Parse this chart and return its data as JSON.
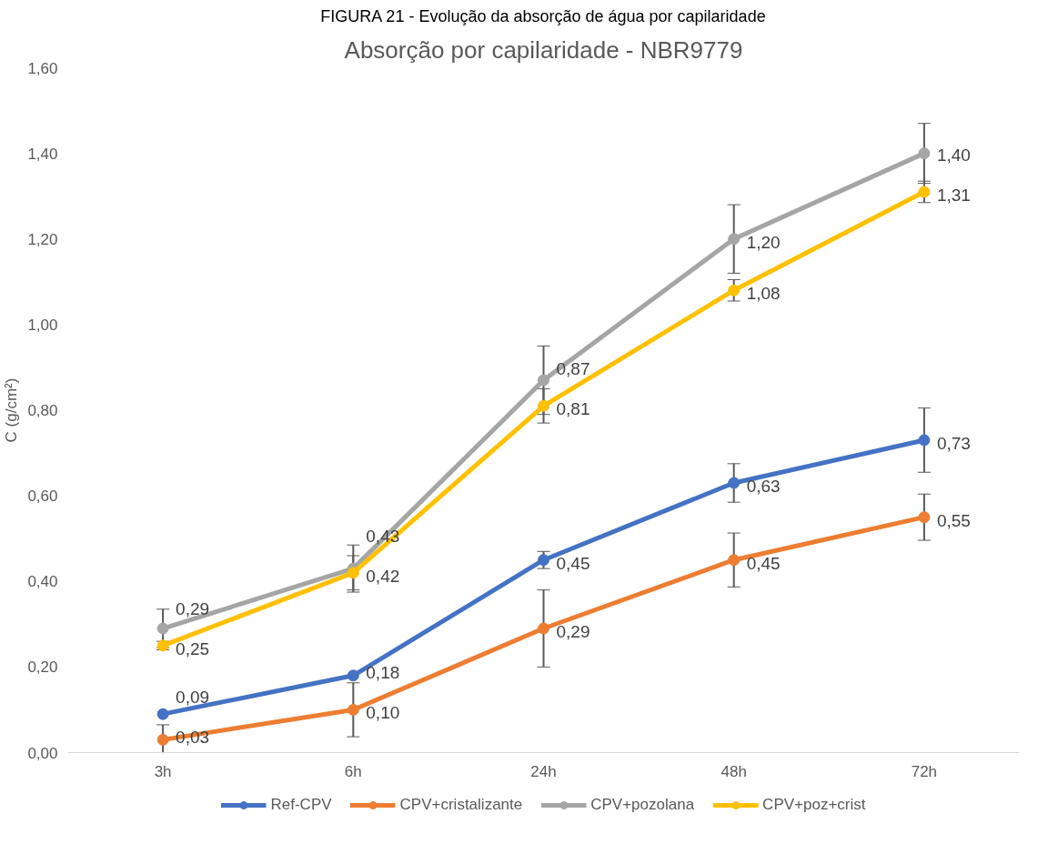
{
  "chart_data": {
    "type": "line",
    "title": "FIGURA 21 - Evolução da absorção de água por capilaridade",
    "subtitle": "Absorção por capilaridade - NBR9779",
    "ylabel": "C (g/cm²)",
    "categories": [
      "3h",
      "6h",
      "24h",
      "48h",
      "72h"
    ],
    "ylim": [
      0,
      1.6
    ],
    "yticks": [
      {
        "value": 0,
        "label": "0,00"
      },
      {
        "value": 0.2,
        "label": "0,20"
      },
      {
        "value": 0.4,
        "label": "0,40"
      },
      {
        "value": 0.6,
        "label": "0,60"
      },
      {
        "value": 0.8,
        "label": "0,80"
      },
      {
        "value": 1.0,
        "label": "1,00"
      },
      {
        "value": 1.2,
        "label": "1,20"
      },
      {
        "value": 1.4,
        "label": "1,40"
      },
      {
        "value": 1.6,
        "label": "1,60"
      }
    ],
    "grid": false,
    "legend": "bottom",
    "marker": "circle",
    "line_style": "solid",
    "series": [
      {
        "name": "Ref-CPV",
        "color": "#4472c4",
        "values": [
          0.09,
          0.18,
          0.45,
          0.63,
          0.73
        ],
        "errors": [
          null,
          null,
          0.02,
          0.045,
          0.075
        ],
        "value_labels": [
          "0,09",
          "0,18",
          "0,45",
          "0,63",
          "0,73"
        ]
      },
      {
        "name": "CPV+cristalizante",
        "color": "#ed7d31",
        "values": [
          0.03,
          0.1,
          0.29,
          0.45,
          0.55
        ],
        "errors": [
          0.035,
          0.063,
          0.09,
          0.063,
          0.054
        ],
        "value_labels": [
          "0,03",
          "0,10",
          "0,29",
          "0,45",
          "0,55"
        ]
      },
      {
        "name": "CPV+pozolana",
        "color": "#a5a5a5",
        "values": [
          0.29,
          0.43,
          0.87,
          1.2,
          1.4
        ],
        "errors": [
          0.045,
          0.055,
          0.08,
          0.08,
          0.07
        ],
        "value_labels": [
          "0,29",
          "0,43",
          "0,87",
          "1,20",
          "1,40"
        ]
      },
      {
        "name": "CPV+poz+crist",
        "color": "#ffc000",
        "values": [
          0.25,
          0.42,
          0.81,
          1.08,
          1.31
        ],
        "errors": [
          0.01,
          0.04,
          0.04,
          0.025,
          0.025
        ],
        "value_labels": [
          "0,25",
          "0,42",
          "0,81",
          "1,08",
          "1,31"
        ]
      }
    ]
  }
}
